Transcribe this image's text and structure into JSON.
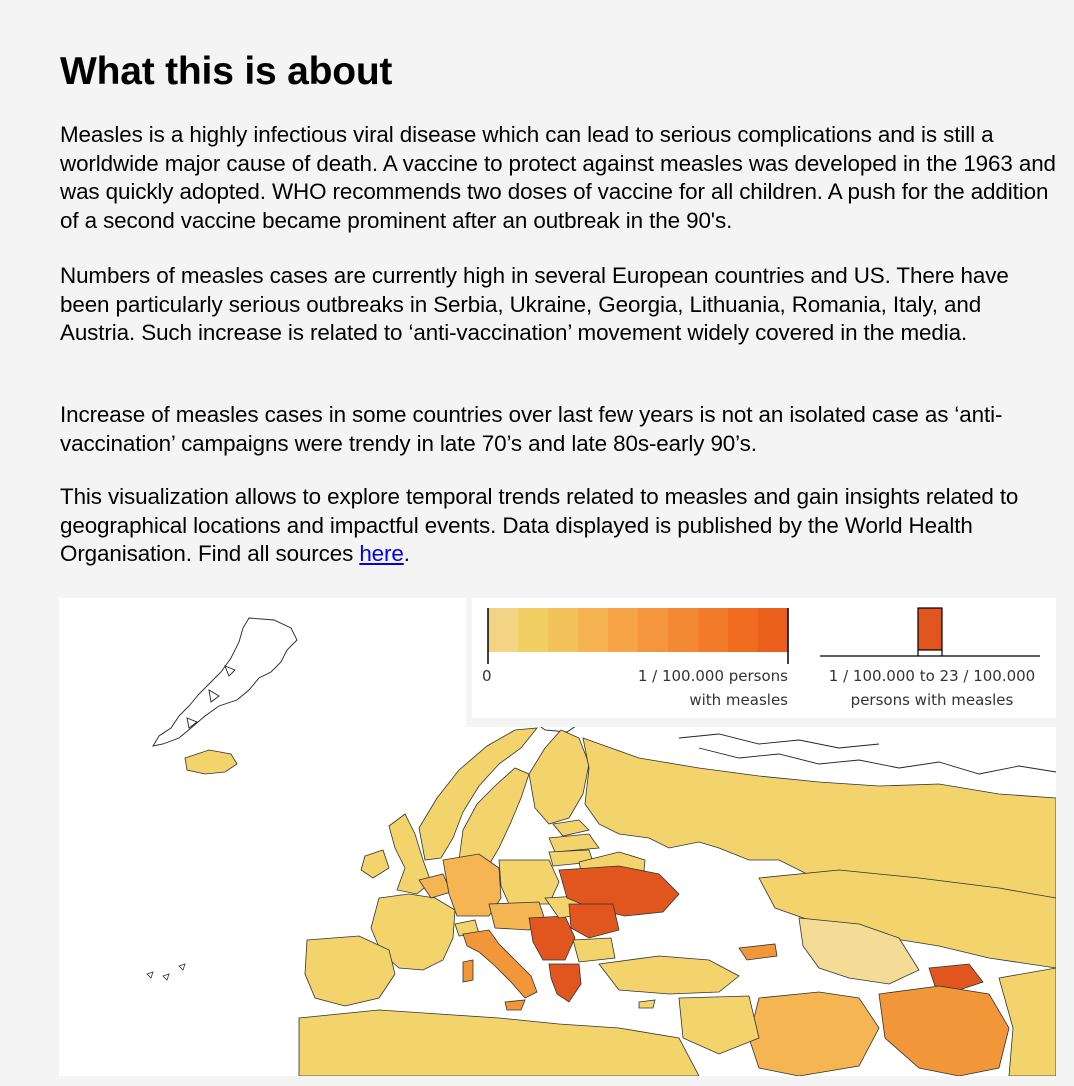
{
  "heading": "What this is about",
  "paragraphs": {
    "p1": "Measles is a highly infectious viral disease which can lead to serious complications and is still a worldwide major cause of death. A vaccine to protect against measles was developed in the 1963 and was quickly adopted. WHO recommends two doses of vaccine for all children. A push for the addition of a second vaccine became prominent after an outbreak in the 90's.",
    "p2": "Numbers of measles cases are currently high in several European countries and US. There have been particularly serious outbreaks in Serbia, Ukraine, Georgia, Lithuania, Romania, Italy, and Austria. Such increase is related to ‘anti-vaccination’ movement widely covered in the media.",
    "p3": "Increase of measles cases in some countries over last few years is not an isolated case as ‘anti-vaccination’ campaigns were trendy in late 70’s and late 80s-early 90’s.",
    "p4_prefix": "This visualization allows to explore temporal trends related to measles and gain insights related to geographical locations and impactful events. Data displayed is published by the World Health Organisation. Find all sources ",
    "p4_link": "here",
    "p4_suffix": "."
  },
  "legend": {
    "scale_colors": [
      "#f3d484",
      "#f1cf62",
      "#f3c25a",
      "#f5b351",
      "#f6a446",
      "#f5963e",
      "#f48934",
      "#f27b2a",
      "#ef6c20",
      "#ea5f1c"
    ],
    "highlight_color": "#e1561f",
    "label_zero": "0",
    "label_max_line1": "1 / 100.000 persons",
    "label_max_line2": "with measles",
    "label_range_line1": "1 / 100.000  to 23 / 100.000",
    "label_range_line2": "persons with measles"
  },
  "map": {
    "colors": {
      "light": "#f3d36b",
      "pale": "#f4dc97",
      "medium": "#f4b552",
      "orange": "#f2963a",
      "dark": "#e1561f"
    }
  }
}
